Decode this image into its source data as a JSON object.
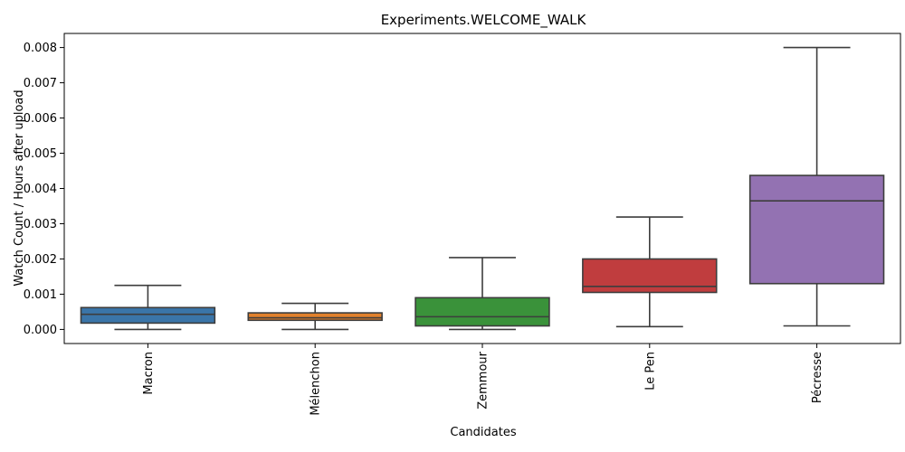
{
  "chart_data": {
    "type": "box",
    "title": "Experiments.WELCOME_WALK",
    "xlabel": "Candidates",
    "ylabel": "Watch Count / Hours after upload",
    "ylim": [
      -0.0004,
      0.0084
    ],
    "yticks": [
      0.0,
      0.001,
      0.002,
      0.003,
      0.004,
      0.005,
      0.006,
      0.007,
      0.008
    ],
    "ytick_labels": [
      "0.000",
      "0.001",
      "0.002",
      "0.003",
      "0.004",
      "0.005",
      "0.006",
      "0.007",
      "0.008"
    ],
    "grid": false,
    "categories": [
      "Macron",
      "Mélenchon",
      "Zemmour",
      "Le Pen",
      "Pécresse"
    ],
    "boxes": [
      {
        "whisker_low": 0.0,
        "q1": 0.00018,
        "median": 0.00043,
        "q3": 0.00062,
        "whisker_high": 0.00125
      },
      {
        "whisker_low": 0.0,
        "q1": 0.00026,
        "median": 0.00033,
        "q3": 0.00047,
        "whisker_high": 0.00074
      },
      {
        "whisker_low": 0.0,
        "q1": 0.0001,
        "median": 0.00036,
        "q3": 0.0009,
        "whisker_high": 0.00204
      },
      {
        "whisker_low": 8e-05,
        "q1": 0.00105,
        "median": 0.00122,
        "q3": 0.002,
        "whisker_high": 0.00319
      },
      {
        "whisker_low": 0.0001,
        "q1": 0.0013,
        "median": 0.00365,
        "q3": 0.00437,
        "whisker_high": 0.008
      }
    ],
    "colors": [
      "#3a75a9",
      "#e1812c",
      "#3a923a",
      "#c03d3e",
      "#9372b2"
    ],
    "line_color": "#3d3d3d"
  }
}
